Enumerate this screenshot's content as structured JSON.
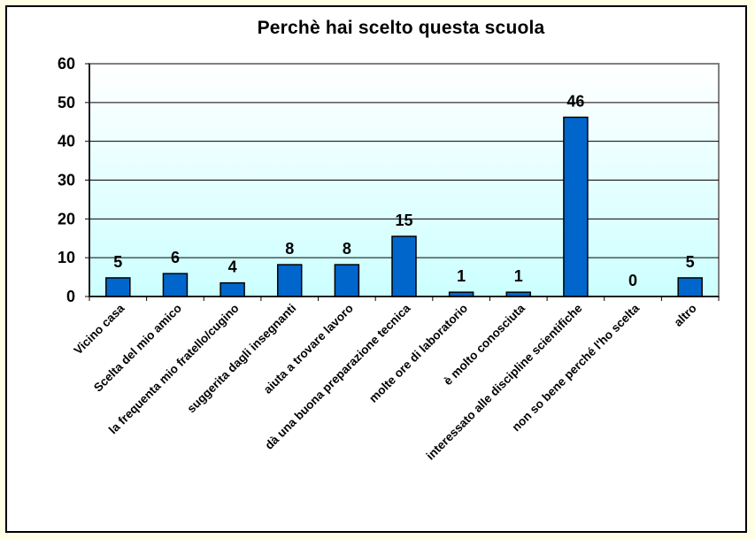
{
  "chart_data": {
    "type": "bar",
    "title": "Perchè hai scelto questa scuola",
    "xlabel": "",
    "ylabel": "",
    "ylim": [
      0,
      60
    ],
    "yticks": [
      0,
      10,
      20,
      30,
      40,
      50,
      60
    ],
    "grid": true,
    "legend": null,
    "categories": [
      "Vicino casa",
      "Scelta del mio amico",
      "la frequenta mio fratello/cugino",
      "suggerita dagli insegnanti",
      "aiuta a trovare lavoro",
      "dà una buona preparazione tecnica",
      "molte ore di laboratorio",
      "è molto conosciuta",
      "interessato alle discipline scientifiche",
      "non so bene perché l'ho scelta",
      "altro"
    ],
    "values": [
      5,
      6,
      4,
      8,
      8,
      15,
      1,
      1,
      46,
      0,
      5
    ],
    "bar_heights_drawn": [
      4.8,
      5.9,
      3.5,
      8.2,
      8.2,
      15.5,
      1.1,
      1.1,
      46.2,
      0,
      4.8
    ],
    "colors": {
      "bar_fill": "#0066cc",
      "bar_stroke": "#000000",
      "plot_bg_top": "#ffffff",
      "plot_bg_bottom": "#ccffff",
      "page_bg": "#ffffe6"
    }
  },
  "ytick_labels": [
    "0",
    "10",
    "20",
    "30",
    "40",
    "50",
    "60"
  ],
  "data_labels": [
    "5",
    "6",
    "4",
    "8",
    "8",
    "15",
    "1",
    "1",
    "46",
    "0",
    "5"
  ]
}
